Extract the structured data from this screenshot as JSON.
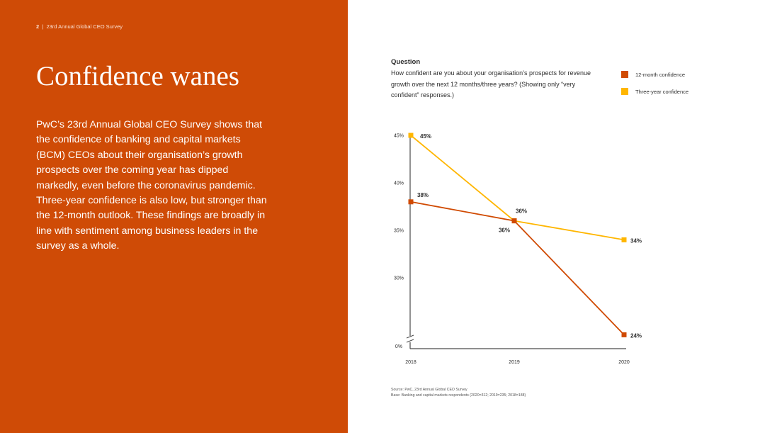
{
  "header": {
    "page_number": "2",
    "separator": "|",
    "publication": "23rd Annual Global CEO Survey"
  },
  "title": "Confidence wanes",
  "body": "PwC’s 23rd Annual Global CEO Survey shows that the confidence of banking and capital markets (BCM) CEOs about their organisation’s growth prospects over the coming year has dipped markedly, even before the coronavirus pandemic. Three-year confidence is also low, but stronger than the 12-month outlook. These findings are broadly in line with sentiment among business leaders in the survey as a whole.",
  "question": {
    "label": "Question",
    "text": "How confident are you about your organisation’s prospects for revenue growth over the next 12 months/three years? (Showing only “very confident” responses.)"
  },
  "source": {
    "line1": "Source: PwC, 23rd Annual Global CEO Survey",
    "line2": "Base: Banking and capital markets respondents (2020=312; 2019=235; 2018=188)"
  },
  "chart_data": {
    "type": "line",
    "x": [
      "2018",
      "2019",
      "2020"
    ],
    "y_tick_labels": [
      "45%",
      "40%",
      "35%",
      "30%",
      "0%"
    ],
    "y_ticks": [
      45,
      40,
      35,
      30
    ],
    "y_zero_label": "0%",
    "axis_break": true,
    "ylim": [
      0,
      45
    ],
    "grid": false,
    "legend_position": "top-right",
    "series": [
      {
        "name": "12-month confidence",
        "color": "#d04a02",
        "values": [
          38,
          36,
          24
        ],
        "labels": [
          "38%",
          "36%",
          "24%"
        ]
      },
      {
        "name": "Three-year confidence",
        "color": "#ffb600",
        "values": [
          45,
          36,
          34
        ],
        "labels": [
          "45%",
          "36%",
          "34%"
        ]
      }
    ]
  }
}
